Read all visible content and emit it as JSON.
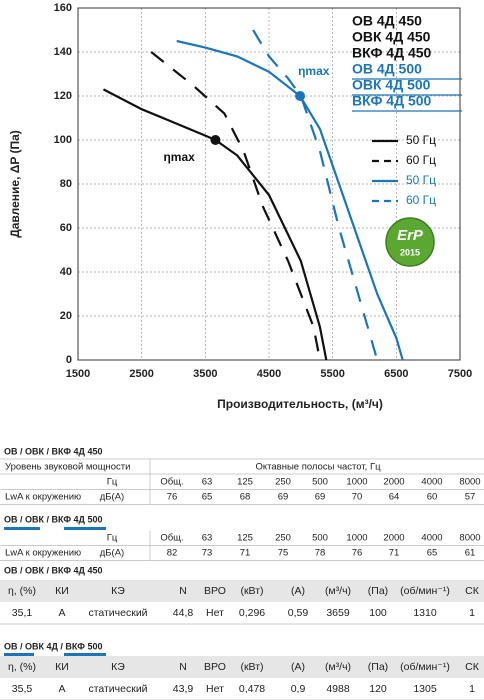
{
  "chart_data": {
    "type": "line",
    "y_label": "Давление, ΔP (Па)",
    "x_label": "Производительность, (м³/ч)",
    "xlim": [
      1500,
      7500
    ],
    "xticks": [
      1500,
      2500,
      3500,
      4500,
      5500,
      6500,
      7500
    ],
    "ylim": [
      0,
      160
    ],
    "yticks": [
      0,
      20,
      40,
      60,
      80,
      100,
      120,
      140,
      160
    ],
    "grid": true,
    "models": [
      {
        "color": "#111111",
        "labels": [
          "ОВ 4Д 450",
          "ОВК 4Д 450",
          "ВКФ 4Д 450"
        ]
      },
      {
        "color": "#1b75bb",
        "labels": [
          "ОВ 4Д 500",
          "ОВК 4Д 500",
          "ВКФ 4Д 500"
        ]
      }
    ],
    "series": [
      {
        "name": "50 Гц",
        "color": "#111111",
        "dashed": false,
        "x": [
          1900,
          2500,
          3000,
          3500,
          3659,
          4000,
          4500,
          5000,
          5300,
          5400
        ],
        "values": [
          123,
          114,
          108,
          102,
          100,
          93,
          75,
          45,
          15,
          0
        ]
      },
      {
        "name": "60 Гц",
        "color": "#111111",
        "dashed": true,
        "x": [
          2650,
          3300,
          3800,
          4100,
          4400,
          4800,
          5200,
          5300
        ],
        "values": [
          140,
          125,
          112,
          95,
          70,
          45,
          15,
          0
        ]
      },
      {
        "name": "50 Гц",
        "color": "#1b75bb",
        "dashed": false,
        "x": [
          3050,
          3500,
          4000,
          4500,
          4988,
          5300,
          5600,
          5900,
          6200,
          6500,
          6600
        ],
        "values": [
          145,
          142,
          138,
          131,
          120,
          105,
          80,
          55,
          30,
          10,
          0
        ]
      },
      {
        "name": "60 Гц",
        "color": "#1b75bb",
        "dashed": true,
        "x": [
          4250,
          4500,
          4800,
          5000,
          5300,
          5600,
          5900,
          6150,
          6200
        ],
        "values": [
          150,
          138,
          128,
          120,
          95,
          60,
          30,
          5,
          0
        ]
      }
    ],
    "points": [
      {
        "x": 3659,
        "y": 100,
        "label": "ηmax",
        "color": "#111111"
      },
      {
        "x": 4988,
        "y": 120,
        "label": "ηmax",
        "color": "#1b75bb"
      }
    ],
    "badge": {
      "text": "ErP",
      "year": "2015"
    }
  },
  "tables": [
    {
      "title": "ОВ / ОВК / ВКФ 4Д 450",
      "header": [
        "Уровень звуковой мощности",
        "Октавные полосы частот, Гц"
      ],
      "rows": [
        [
          null,
          "Гц",
          "Общ.",
          "63",
          "125",
          "250",
          "500",
          "1000",
          "2000",
          "4000",
          "8000"
        ],
        [
          "LwA к окружению",
          "дБ(А)",
          "76",
          "65",
          "68",
          "69",
          "69",
          "70",
          "64",
          "60",
          "57"
        ]
      ]
    },
    {
      "title": "ОВ / ОВК / ВКФ 4Д 500",
      "rows": [
        [
          null,
          "Гц",
          "Общ.",
          "63",
          "125",
          "250",
          "500",
          "1000",
          "2000",
          "4000",
          "8000"
        ],
        [
          "LwA к окружению",
          "дБ(А)",
          "82",
          "73",
          "71",
          "75",
          "78",
          "76",
          "71",
          "65",
          "61"
        ]
      ]
    },
    {
      "title": "ОВ / ОВК / ВКФ 4Д 450",
      "rows": [
        [
          "η, (%)",
          "КИ",
          "КЭ",
          "N",
          "ВРО",
          "(кВт)",
          "(А)",
          "(м³/ч)",
          "(Па)",
          "(об/мин⁻¹)",
          "СК"
        ],
        [
          "35,1",
          "A",
          "статический",
          "44,8",
          "Нет",
          "0,296",
          "0,59",
          "3659",
          "100",
          "1310",
          "1"
        ]
      ]
    },
    {
      "title": "ОВ / ОВК 4Д / ВКФ 500",
      "rows": [
        [
          "η, (%)",
          "КИ",
          "КЭ",
          "N",
          "ВРО",
          "(кВт)",
          "(А)",
          "(м³/ч)",
          "(Па)",
          "(об/мин⁻¹)",
          "СК"
        ],
        [
          "35,5",
          "A",
          "статический",
          "43,9",
          "Нет",
          "0,478",
          "0,9",
          "4988",
          "120",
          "1305",
          "1"
        ]
      ]
    }
  ]
}
